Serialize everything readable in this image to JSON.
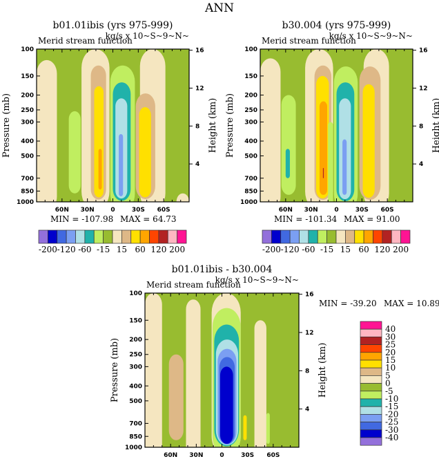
{
  "main_title": "ANN",
  "colors": [
    "#9370db",
    "#0000cd",
    "#4169e1",
    "#7b9ff2",
    "#b0e0e6",
    "#20b2aa",
    "#c0ee60",
    "#98bc30",
    "#f5e6c0",
    "#deb887",
    "#ffe000",
    "#ffa500",
    "#ff4500",
    "#b22222",
    "#ffb6c1",
    "#ff1493"
  ],
  "chart_data": [
    {
      "type": "heatmap",
      "title": "b01.01ibis (yrs 975-999)",
      "subtitle_left": "Merid stream function",
      "subtitle_right": "kg/s x 10~S~9~N~",
      "ylabel": "Pressure (mb)",
      "ylabel_right": "Height (km)",
      "xticks": [
        "60N",
        "30N",
        "0",
        "30S",
        "60S"
      ],
      "yticks": [
        "100",
        "150",
        "200",
        "250",
        "300",
        "400",
        "500",
        "700",
        "850",
        "1000"
      ],
      "yticks_right": [
        "16",
        "12",
        "8",
        "4"
      ],
      "min_label": "MIN = -107.98",
      "max_label": "MAX =   64.73",
      "levels": [
        "-200",
        "-120",
        "-60",
        "-15",
        "15",
        "60",
        "120",
        "200"
      ]
    },
    {
      "type": "heatmap",
      "title": "b30.004 (yrs 975-999)",
      "subtitle_left": "Merid stream function",
      "subtitle_right": "kg/s x 10~S~9~N~",
      "ylabel": "Pressure (mb)",
      "ylabel_right": "Height (km)",
      "xticks": [
        "60N",
        "30N",
        "0",
        "30S",
        "60S"
      ],
      "yticks": [
        "100",
        "150",
        "200",
        "250",
        "300",
        "400",
        "500",
        "700",
        "850",
        "1000"
      ],
      "yticks_right": [
        "16",
        "12",
        "8",
        "4"
      ],
      "min_label": "MIN = -101.34",
      "max_label": "MAX =   91.00",
      "levels": [
        "-200",
        "-120",
        "-60",
        "-15",
        "15",
        "60",
        "120",
        "200"
      ]
    },
    {
      "type": "heatmap",
      "title": "b01.01ibis - b30.004",
      "subtitle_left": "Merid stream function",
      "subtitle_right": "kg/s x 10~S~9~N~",
      "ylabel": "Pressure (mb)",
      "ylabel_right": "Height (km)",
      "xticks": [
        "60N",
        "30N",
        "0",
        "30S",
        "60S"
      ],
      "yticks": [
        "100",
        "150",
        "200",
        "250",
        "300",
        "400",
        "500",
        "700",
        "850",
        "1000"
      ],
      "yticks_right": [
        "16",
        "12",
        "8",
        "4"
      ],
      "min_label": "MIN = -39.20",
      "max_label": "MAX =  10.89",
      "levels": [
        "40",
        "30",
        "25",
        "20",
        "15",
        "10",
        "5",
        "0",
        "-5",
        "-10",
        "-15",
        "-20",
        "-25",
        "-30",
        "-40"
      ]
    }
  ]
}
